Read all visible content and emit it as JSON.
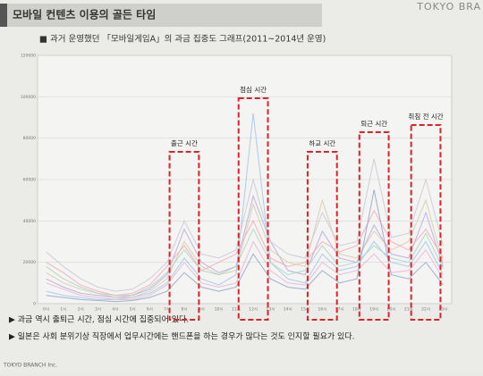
{
  "header": {
    "title": "모바일 컨텐츠 이용의 골든 타임",
    "brand": "TOKYO BRA"
  },
  "chart_data": {
    "type": "line",
    "title": "■ 과거 운영했던 「모바일게임A」의 과금 집중도 그래프(2011~2014년 운영)",
    "categories": [
      "0시",
      "1시",
      "2시",
      "3시",
      "4시",
      "5시",
      "6시",
      "7시",
      "8시",
      "9시",
      "10시",
      "11시",
      "12시",
      "13시",
      "14시",
      "15시",
      "16시",
      "17시",
      "18시",
      "19시",
      "20시",
      "21시",
      "22시",
      "23시"
    ],
    "ylim": [
      0,
      120000
    ],
    "yticks": [
      0,
      20000,
      40000,
      60000,
      80000,
      100000,
      120000
    ],
    "grid": true,
    "annotations": [
      "출근 시간",
      "점심 시간",
      "하교 시간",
      "퇴근 시간",
      "취침 전 시간"
    ],
    "series": [
      {
        "color": "#b9a6e0",
        "values": [
          12000,
          8000,
          5000,
          4000,
          3000,
          4000,
          7000,
          14000,
          36000,
          20000,
          15000,
          18000,
          52000,
          30000,
          16000,
          14000,
          35000,
          22000,
          20000,
          38000,
          24000,
          22000,
          44000,
          18000
        ]
      },
      {
        "color": "#f2a7b8",
        "values": [
          20000,
          15000,
          9000,
          6000,
          4000,
          5000,
          9000,
          18000,
          28000,
          16000,
          20000,
          24000,
          40000,
          22000,
          18000,
          20000,
          30000,
          25000,
          28000,
          45000,
          30000,
          26000,
          36000,
          22000
        ]
      },
      {
        "color": "#9ec5e8",
        "values": [
          6000,
          4000,
          3000,
          2000,
          2000,
          3000,
          5000,
          10000,
          22000,
          12000,
          9000,
          14000,
          92000,
          20000,
          12000,
          10000,
          24000,
          16000,
          18000,
          30000,
          20000,
          18000,
          30000,
          14000
        ]
      },
      {
        "color": "#d8c9a8",
        "values": [
          15000,
          10000,
          7000,
          5000,
          3000,
          3000,
          6000,
          12000,
          30000,
          18000,
          14000,
          16000,
          48000,
          26000,
          20000,
          18000,
          50000,
          24000,
          22000,
          35000,
          26000,
          30000,
          50000,
          20000
        ]
      },
      {
        "color": "#c7c7d9",
        "values": [
          25000,
          18000,
          12000,
          8000,
          6000,
          7000,
          12000,
          20000,
          40000,
          24000,
          22000,
          26000,
          60000,
          30000,
          24000,
          22000,
          44000,
          28000,
          30000,
          70000,
          32000,
          34000,
          60000,
          28000
        ]
      },
      {
        "color": "#e6b3d6",
        "values": [
          10000,
          7000,
          4000,
          3000,
          2000,
          2000,
          4000,
          9000,
          20000,
          10000,
          8000,
          10000,
          30000,
          16000,
          10000,
          9000,
          20000,
          14000,
          16000,
          24000,
          15000,
          16000,
          26000,
          12000
        ]
      },
      {
        "color": "#a9d4c4",
        "values": [
          18000,
          12000,
          8000,
          5000,
          4000,
          4000,
          8000,
          15000,
          26000,
          16000,
          14000,
          18000,
          36000,
          20000,
          14000,
          16000,
          28000,
          18000,
          20000,
          28000,
          22000,
          20000,
          34000,
          17000
        ]
      },
      {
        "color": "#8fa3c9",
        "values": [
          4000,
          3000,
          2000,
          1500,
          1000,
          1500,
          3000,
          6000,
          15000,
          8000,
          6000,
          8000,
          24000,
          12000,
          8000,
          7000,
          16000,
          10000,
          12000,
          55000,
          14000,
          12000,
          20000,
          9000
        ]
      }
    ]
  },
  "notes": [
    "▶ 과금 역시 출퇴근 시간, 점심 시간에 집중되어 있다.",
    "▶ 일본은 사회 분위기상 직장에서 업무시간에는 핸드폰을 하는 경우가 많다는 것도 인지할 필요가 있다."
  ],
  "footer": "TOKYO BRANCH Inc."
}
